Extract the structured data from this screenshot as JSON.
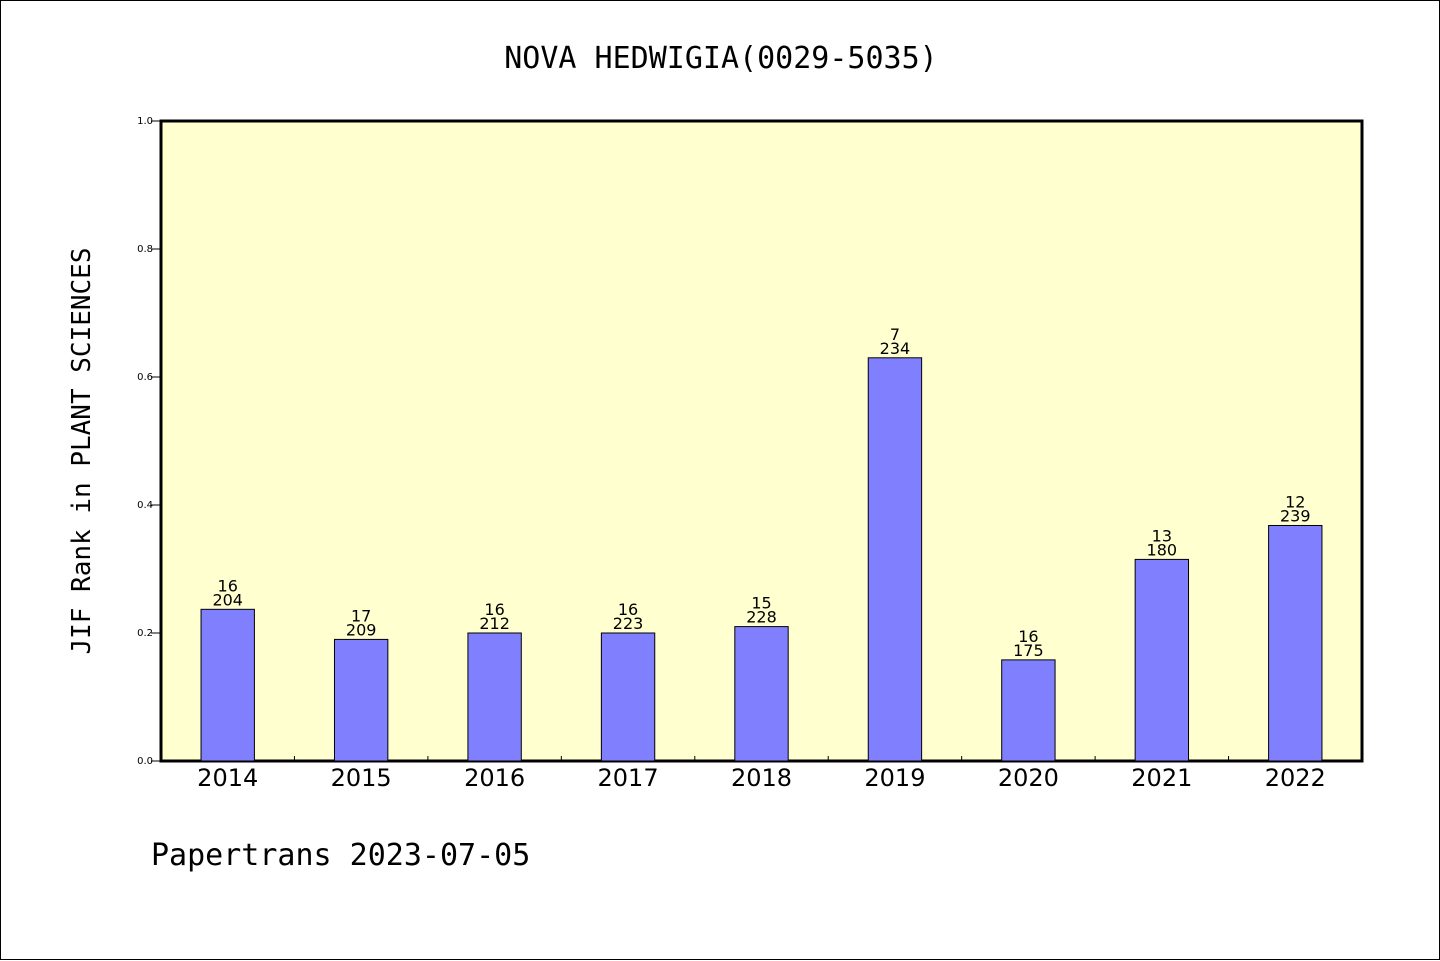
{
  "footer": "Papertrans 2023-07-05",
  "chart_data": {
    "type": "bar",
    "title": "NOVA HEDWIGIA(0029-5035)",
    "xlabel": "",
    "ylabel": "JIF Rank in PLANT SCIENCES",
    "ylim": [
      0,
      1.0
    ],
    "yticks": [
      "0.0",
      "0.2",
      "0.4",
      "0.6",
      "0.8",
      "1.0"
    ],
    "grid": false,
    "categories": [
      "2014",
      "2015",
      "2016",
      "2017",
      "2018",
      "2019",
      "2020",
      "2021",
      "2022"
    ],
    "values": [
      0.237,
      0.19,
      0.2,
      0.2,
      0.21,
      0.63,
      0.158,
      0.315,
      0.368
    ],
    "rank_labels": [
      {
        "rank": "16",
        "total": "204"
      },
      {
        "rank": "17",
        "total": "209"
      },
      {
        "rank": "16",
        "total": "212"
      },
      {
        "rank": "16",
        "total": "223"
      },
      {
        "rank": "15",
        "total": "228"
      },
      {
        "rank": "7",
        "total": "234"
      },
      {
        "rank": "16",
        "total": "175"
      },
      {
        "rank": "13",
        "total": "180"
      },
      {
        "rank": "12",
        "total": "239"
      }
    ],
    "colors": {
      "plot_background": "#ffffd0",
      "bar_fill": "#8080ff",
      "bar_stroke": "#000000"
    }
  }
}
